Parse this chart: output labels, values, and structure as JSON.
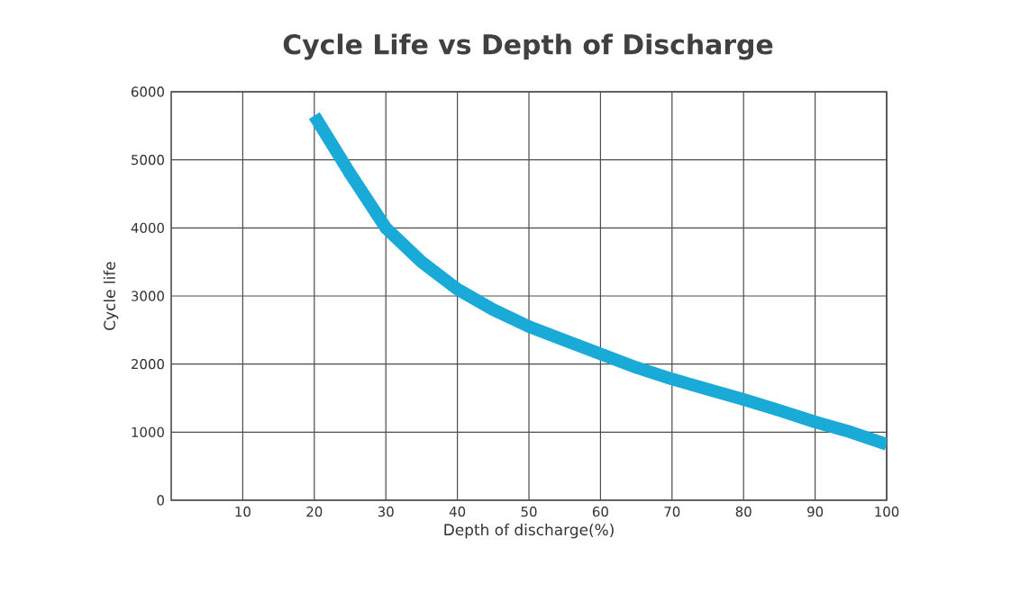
{
  "chart_data": {
    "type": "line",
    "title": "Cycle Life vs Depth of Discharge",
    "xlabel": "Depth of discharge(%)",
    "ylabel": "Cycle life",
    "x": [
      20,
      25,
      30,
      35,
      40,
      45,
      50,
      55,
      60,
      65,
      70,
      75,
      80,
      85,
      90,
      95,
      100
    ],
    "series": [
      {
        "color": "#19aad8",
        "values": [
          5650,
          4800,
          4000,
          3500,
          3100,
          2800,
          2550,
          2350,
          2150,
          1950,
          1780,
          1630,
          1480,
          1320,
          1150,
          1000,
          820
        ]
      }
    ],
    "xlim": [
      0,
      100
    ],
    "ylim": [
      0,
      6000
    ],
    "xticks": [
      10,
      20,
      30,
      40,
      50,
      60,
      70,
      80,
      90,
      100
    ],
    "yticks": [
      0,
      1000,
      2000,
      3000,
      4000,
      5000,
      6000
    ],
    "grid": true,
    "marker": "none",
    "line_style": "solid"
  }
}
